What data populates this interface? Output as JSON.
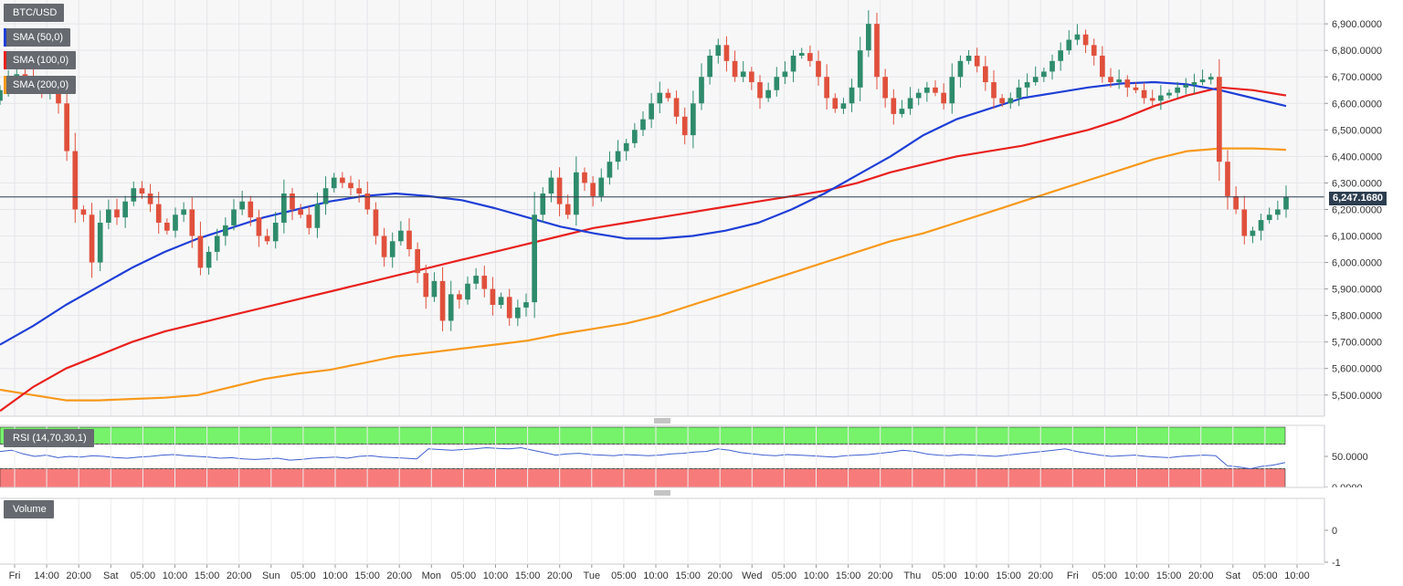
{
  "legends": {
    "symbol": "BTC/USD",
    "sma50": "SMA (50,0)",
    "sma100": "SMA (100,0)",
    "sma200": "SMA (200,0)",
    "rsi": "RSI (14,70,30,1)",
    "volume": "Volume"
  },
  "colors": {
    "up": "#2e8b6b",
    "down": "#e0503c",
    "sma50": "#1f3fd6",
    "sma100": "#e8211e",
    "sma200": "#f7991c",
    "rsi_line": "#3f5fd0",
    "rsi_overbought": "#77f26b",
    "rsi_oversold": "#f77b7b",
    "current_line": "#2c3e50"
  },
  "chart_data": [
    {
      "type": "candlestick",
      "title": "BTC/USD",
      "y_ticks": [
        "6,900.0000",
        "6,800.0000",
        "6,700.0000",
        "6,600.0000",
        "6,500.0000",
        "6,400.0000",
        "6,300.0000",
        "6,200.0000",
        "6,100.0000",
        "6,000.0000",
        "5,900.0000",
        "5,800.0000",
        "5,700.0000",
        "5,600.0000",
        "5,500.0000"
      ],
      "ylim": [
        5420,
        6990
      ],
      "current_price": 6247.168,
      "current_price_label": "6,247.1680",
      "x_ticks": [
        "Fri",
        "14:00",
        "20:00",
        "Sat",
        "05:00",
        "10:00",
        "15:00",
        "20:00",
        "Sun",
        "05:00",
        "10:00",
        "15:00",
        "20:00",
        "Mon",
        "05:00",
        "10:00",
        "15:00",
        "20:00",
        "Tue",
        "05:00",
        "10:00",
        "15:00",
        "20:00",
        "Wed",
        "05:00",
        "10:00",
        "15:00",
        "20:00",
        "Thu",
        "05:00",
        "10:00",
        "15:00",
        "20:00",
        "Fri",
        "05:00",
        "10:00",
        "15:00",
        "20:00",
        "Sat",
        "05:00",
        "10:00"
      ],
      "closes": [
        6650,
        6700,
        6710,
        6690,
        6660,
        6640,
        6650,
        6600,
        6420,
        6200,
        6180,
        6000,
        6150,
        6200,
        6170,
        6230,
        6280,
        6260,
        6220,
        6150,
        6120,
        6180,
        6200,
        6100,
        5980,
        6040,
        6100,
        6140,
        6200,
        6230,
        6170,
        6100,
        6080,
        6150,
        6260,
        6200,
        6180,
        6130,
        6220,
        6280,
        6320,
        6300,
        6280,
        6260,
        6200,
        6100,
        6020,
        6080,
        6120,
        6050,
        5960,
        5870,
        5930,
        5780,
        5880,
        5860,
        5920,
        5950,
        5900,
        5840,
        5870,
        5790,
        5830,
        5850,
        6180,
        6260,
        6320,
        6220,
        6180,
        6340,
        6300,
        6250,
        6320,
        6380,
        6420,
        6450,
        6500,
        6540,
        6600,
        6640,
        6620,
        6550,
        6480,
        6600,
        6700,
        6780,
        6820,
        6760,
        6700,
        6720,
        6680,
        6620,
        6650,
        6700,
        6720,
        6780,
        6790,
        6760,
        6700,
        6620,
        6580,
        6600,
        6660,
        6800,
        6900,
        6700,
        6620,
        6560,
        6580,
        6620,
        6640,
        6660,
        6640,
        6600,
        6700,
        6760,
        6780,
        6740,
        6680,
        6620,
        6600,
        6620,
        6660,
        6680,
        6700,
        6720,
        6760,
        6800,
        6840,
        6860,
        6820,
        6780,
        6700,
        6680,
        6690,
        6660,
        6650,
        6620,
        6610,
        6630,
        6640,
        6660,
        6670,
        6680,
        6690,
        6700,
        6380,
        6250,
        6200,
        6100,
        6120,
        6160,
        6180,
        6200,
        6247.168
      ],
      "sma50": [
        5690,
        5760,
        5840,
        5910,
        5980,
        6040,
        6090,
        6130,
        6170,
        6200,
        6230,
        6250,
        6260,
        6250,
        6235,
        6205,
        6170,
        6135,
        6110,
        6090,
        6090,
        6100,
        6120,
        6150,
        6200,
        6260,
        6330,
        6400,
        6480,
        6540,
        6580,
        6620,
        6640,
        6660,
        6675,
        6680,
        6672,
        6650,
        6620,
        6590
      ],
      "sma100": [
        5440,
        5530,
        5600,
        5650,
        5700,
        5740,
        5770,
        5800,
        5830,
        5860,
        5890,
        5920,
        5950,
        5980,
        6010,
        6040,
        6070,
        6100,
        6130,
        6150,
        6170,
        6190,
        6210,
        6230,
        6250,
        6270,
        6300,
        6340,
        6370,
        6400,
        6420,
        6440,
        6470,
        6500,
        6540,
        6590,
        6630,
        6660,
        6650,
        6630
      ],
      "sma200": [
        5520,
        5500,
        5480,
        5480,
        5485,
        5490,
        5500,
        5530,
        5560,
        5580,
        5595,
        5620,
        5645,
        5660,
        5675,
        5690,
        5705,
        5730,
        5750,
        5770,
        5800,
        5840,
        5880,
        5920,
        5960,
        6000,
        6040,
        6080,
        6110,
        6150,
        6190,
        6230,
        6270,
        6310,
        6350,
        6390,
        6420,
        6430,
        6430,
        6425
      ]
    },
    {
      "type": "line",
      "title": "RSI (14,70,30,1)",
      "y_ticks": [
        "50.0000",
        "0.0000"
      ],
      "ylim": [
        0,
        100
      ],
      "overbought": 70,
      "oversold": 30,
      "values": [
        58,
        60,
        54,
        50,
        52,
        48,
        50,
        49,
        51,
        50,
        48,
        47,
        49,
        50,
        52,
        53,
        51,
        50,
        49,
        47,
        48,
        46,
        45,
        46,
        47,
        44,
        45,
        47,
        48,
        49,
        47,
        50,
        51,
        49,
        48,
        47,
        46,
        62,
        61,
        60,
        61,
        62,
        64,
        63,
        62,
        64,
        60,
        56,
        52,
        54,
        55,
        53,
        52,
        51,
        53,
        52,
        51,
        52,
        54,
        55,
        57,
        58,
        62,
        60,
        56,
        54,
        52,
        51,
        53,
        52,
        51,
        50,
        49,
        51,
        52,
        53,
        55,
        57,
        60,
        58,
        54,
        52,
        51,
        53,
        52,
        51,
        50,
        52,
        54,
        56,
        58,
        60,
        62,
        58,
        55,
        52,
        50,
        51,
        52,
        50,
        49,
        48,
        50,
        51,
        52,
        51,
        35,
        33,
        30,
        34,
        36,
        40
      ]
    },
    {
      "type": "bar",
      "title": "Volume",
      "y_ticks": [
        "0",
        "-1"
      ],
      "ylim": [
        -1,
        1
      ]
    }
  ]
}
